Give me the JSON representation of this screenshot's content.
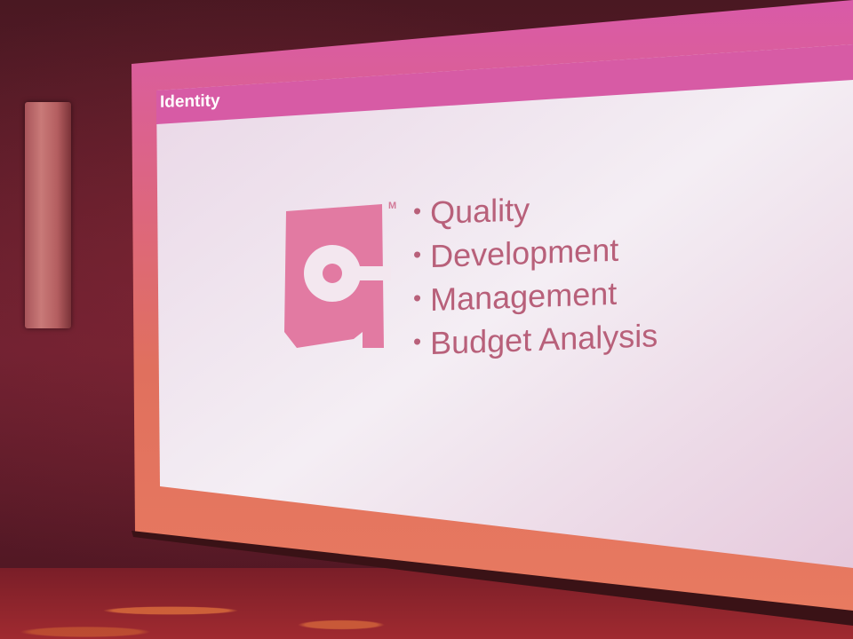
{
  "slide": {
    "title": "Identity",
    "trademark": "M",
    "bullets": [
      "Quality",
      "Development",
      "Management",
      "Budget Analysis"
    ]
  },
  "colors": {
    "accent": "#d85aa0",
    "logo": "#e07aa0",
    "text": "#b8607a",
    "screen": "#efe4ee"
  },
  "icons": {
    "logo": "company-logo-icon",
    "speaker": "wall-speaker"
  }
}
